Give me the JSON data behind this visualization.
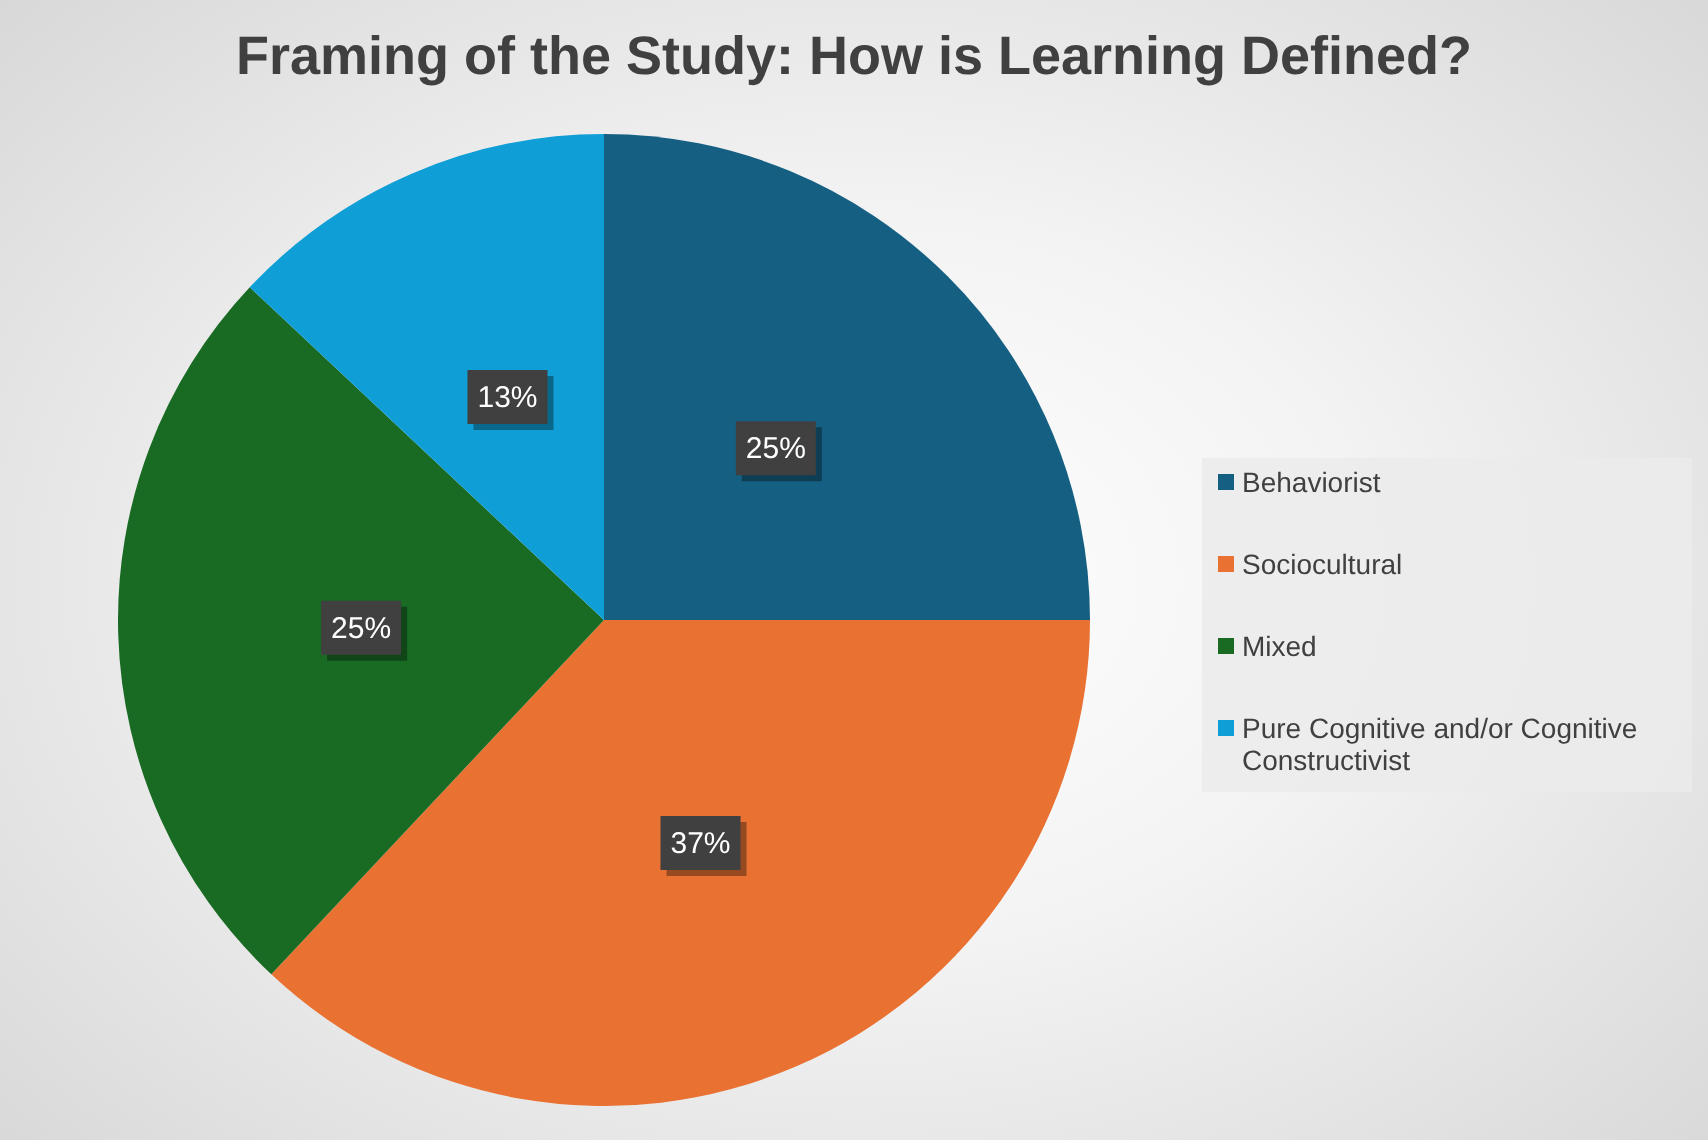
{
  "chart_data": {
    "type": "pie",
    "title": "Framing of the Study: How is Learning Defined?",
    "categories": [
      "Behaviorist",
      "Sociocultural",
      "Mixed",
      "Pure Cognitive and/or Cognitive Constructivist"
    ],
    "values": [
      25,
      37,
      25,
      13
    ],
    "colors": [
      "#156082",
      "#e97132",
      "#196b24",
      "#0f9ed5"
    ],
    "value_labels": [
      "25%",
      "37%",
      "25%",
      "13%"
    ],
    "legend": "right"
  }
}
